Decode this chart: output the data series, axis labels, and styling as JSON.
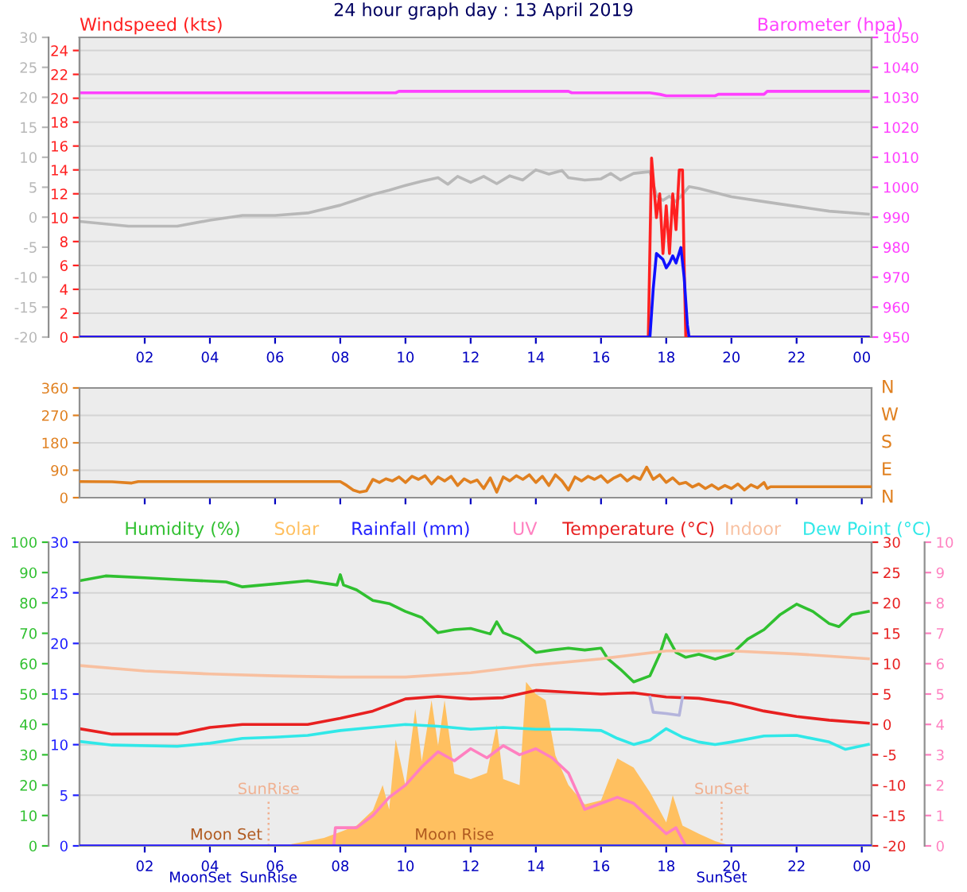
{
  "chart_data": [
    {
      "type": "line",
      "title": "24 hour graph day : 13 April 2019",
      "ylabel": "Windspeed (kts)",
      "y2label": "Barometer (hpa)",
      "xlim": [
        "2019-04-13T00:00",
        "2019-04-14T00:18"
      ],
      "xticks": [
        {
          "value": "2019-04-13T02:00",
          "label": "02"
        },
        {
          "value": "2019-04-13T04:00",
          "label": "04"
        },
        {
          "value": "2019-04-13T06:00",
          "label": "06"
        },
        {
          "value": "2019-04-13T08:00",
          "label": "08"
        },
        {
          "value": "2019-04-13T10:00",
          "label": "10"
        },
        {
          "value": "2019-04-13T12:00",
          "label": "12"
        },
        {
          "value": "2019-04-13T14:00",
          "label": "14"
        },
        {
          "value": "2019-04-13T16:00",
          "label": "16"
        },
        {
          "value": "2019-04-13T18:00",
          "label": "18"
        },
        {
          "value": "2019-04-13T20:00",
          "label": "20"
        },
        {
          "value": "2019-04-13T22:00",
          "label": "22"
        },
        {
          "value": "2019-04-14T00:00",
          "label": "00"
        }
      ],
      "ylim": [
        0,
        25.1
      ],
      "yticks": [
        0,
        2,
        4,
        6,
        8,
        10,
        12,
        14,
        16,
        18,
        20,
        22,
        24
      ],
      "y2lim": [
        950,
        1050
      ],
      "y2ticks": [
        950,
        960,
        970,
        980,
        990,
        1000,
        1010,
        1020,
        1030,
        1040,
        1050
      ],
      "y3lim": [
        -20,
        30
      ],
      "y3ticks": [
        -20,
        -15,
        -10,
        -5,
        0,
        5,
        10,
        15,
        20,
        25,
        30
      ],
      "grid": "y",
      "series": [
        {
          "color": "#b8b8b8",
          "axis": "y3",
          "x": [
            "2019-04-13T00:00",
            "2019-04-13T01:30",
            "2019-04-13T03:00",
            "2019-04-13T04:00",
            "2019-04-13T05:00",
            "2019-04-13T06:00",
            "2019-04-13T07:00",
            "2019-04-13T08:00",
            "2019-04-13T09:00",
            "2019-04-13T09:30",
            "2019-04-13T10:00",
            "2019-04-13T10:30",
            "2019-04-13T11:00",
            "2019-04-13T11:18",
            "2019-04-13T11:36",
            "2019-04-13T12:00",
            "2019-04-13T12:24",
            "2019-04-13T12:48",
            "2019-04-13T13:12",
            "2019-04-13T13:36",
            "2019-04-13T14:00",
            "2019-04-13T14:24",
            "2019-04-13T14:48",
            "2019-04-13T15:00",
            "2019-04-13T15:30",
            "2019-04-13T16:00",
            "2019-04-13T16:18",
            "2019-04-13T16:36",
            "2019-04-13T17:00",
            "2019-04-13T17:30",
            "2019-04-13T17:42",
            "2019-04-13T17:54",
            "2019-04-13T18:06",
            "2019-04-13T18:18",
            "2019-04-13T18:30",
            "2019-04-13T18:42",
            "2019-04-13T19:00",
            "2019-04-13T20:00",
            "2019-04-13T21:00",
            "2019-04-13T22:00",
            "2019-04-13T23:00",
            "2019-04-14T00:12"
          ],
          "values": [
            -0.7,
            -1.5,
            -1.5,
            -0.5,
            0.3,
            0.3,
            0.7,
            2.0,
            3.8,
            4.5,
            5.3,
            6.0,
            6.6,
            5.5,
            6.8,
            5.8,
            6.8,
            5.6,
            6.9,
            6.2,
            7.9,
            7.2,
            7.8,
            6.6,
            6.2,
            6.4,
            7.3,
            6.2,
            7.3,
            7.6,
            3.6,
            2.8,
            3.5,
            2.6,
            3.8,
            5.1,
            4.8,
            3.4,
            2.6,
            1.8,
            1.0,
            0.5
          ]
        },
        {
          "color": "#ff40ff",
          "axis": "y2",
          "x": [
            "2019-04-13T00:00",
            "2019-04-13T09:42",
            "2019-04-13T09:48",
            "2019-04-13T15:00",
            "2019-04-13T15:06",
            "2019-04-13T17:30",
            "2019-04-13T17:48",
            "2019-04-13T18:00",
            "2019-04-13T19:30",
            "2019-04-13T19:36",
            "2019-04-13T21:00",
            "2019-04-13T21:06",
            "2019-04-14T00:12"
          ],
          "values": [
            1031.5,
            1031.5,
            1032,
            1032,
            1031.5,
            1031.5,
            1031,
            1030.5,
            1030.5,
            1031,
            1031,
            1032,
            1032
          ]
        },
        {
          "color": "#ff2020",
          "x": [
            "2019-04-13T00:00",
            "2019-04-13T17:27",
            "2019-04-13T17:33",
            "2019-04-13T17:42",
            "2019-04-13T17:48",
            "2019-04-13T17:54",
            "2019-04-13T18:00",
            "2019-04-13T18:06",
            "2019-04-13T18:12",
            "2019-04-13T18:18",
            "2019-04-13T18:24",
            "2019-04-13T18:30",
            "2019-04-13T18:33",
            "2019-04-13T18:36",
            "2019-04-14T00:12"
          ],
          "values": [
            0,
            0,
            15,
            10,
            12,
            7,
            11,
            7,
            12,
            9,
            14,
            14,
            6,
            0,
            0
          ]
        },
        {
          "color": "#1010ff",
          "x": [
            "2019-04-13T00:00",
            "2019-04-13T17:30",
            "2019-04-13T17:36",
            "2019-04-13T17:42",
            "2019-04-13T17:54",
            "2019-04-13T18:00",
            "2019-04-13T18:06",
            "2019-04-13T18:12",
            "2019-04-13T18:18",
            "2019-04-13T18:27",
            "2019-04-13T18:33",
            "2019-04-13T18:39",
            "2019-04-13T18:42",
            "2019-04-14T00:12"
          ],
          "values": [
            0,
            0,
            4,
            7,
            6.5,
            5.8,
            6.2,
            6.8,
            6.2,
            7.5,
            5,
            1,
            0,
            0
          ]
        }
      ]
    },
    {
      "type": "line",
      "tick_labels": "y",
      "xlim": [
        "2019-04-13T00:00",
        "2019-04-14T00:18"
      ],
      "xticks": [
        {
          "value": "2019-04-13T02:00",
          "label": null
        },
        {
          "value": "2019-04-13T04:00",
          "label": null
        },
        {
          "value": "2019-04-13T06:00",
          "label": null
        },
        {
          "value": "2019-04-13T08:00",
          "label": null
        },
        {
          "value": "2019-04-13T10:00",
          "label": null
        },
        {
          "value": "2019-04-13T12:00",
          "label": null
        },
        {
          "value": "2019-04-13T14:00",
          "label": null
        },
        {
          "value": "2019-04-13T16:00",
          "label": null
        },
        {
          "value": "2019-04-13T18:00",
          "label": null
        },
        {
          "value": "2019-04-13T20:00",
          "label": null
        },
        {
          "value": "2019-04-13T22:00",
          "label": null
        },
        {
          "value": "2019-04-14T00:00",
          "label": null
        }
      ],
      "ylim": [
        0,
        360
      ],
      "yticks": [
        0,
        90,
        180,
        270,
        360
      ],
      "annotations": [
        "N",
        "E",
        "S",
        "W",
        "N"
      ],
      "grid": "y",
      "series": [
        {
          "color": "#e08020",
          "x": [
            "2019-04-13T00:00",
            "2019-04-13T01:00",
            "2019-04-13T01:36",
            "2019-04-13T01:48",
            "2019-04-13T04:00",
            "2019-04-13T06:00",
            "2019-04-13T08:00",
            "2019-04-13T08:12",
            "2019-04-13T08:24",
            "2019-04-13T08:36",
            "2019-04-13T08:48",
            "2019-04-13T09:00",
            "2019-04-13T09:12",
            "2019-04-13T09:24",
            "2019-04-13T09:36",
            "2019-04-13T09:48",
            "2019-04-13T10:00",
            "2019-04-13T10:12",
            "2019-04-13T10:24",
            "2019-04-13T10:36",
            "2019-04-13T10:48",
            "2019-04-13T11:00",
            "2019-04-13T11:12",
            "2019-04-13T11:24",
            "2019-04-13T11:36",
            "2019-04-13T11:48",
            "2019-04-13T12:00",
            "2019-04-13T12:12",
            "2019-04-13T12:24",
            "2019-04-13T12:36",
            "2019-04-13T12:48",
            "2019-04-13T13:00",
            "2019-04-13T13:12",
            "2019-04-13T13:24",
            "2019-04-13T13:36",
            "2019-04-13T13:48",
            "2019-04-13T14:00",
            "2019-04-13T14:12",
            "2019-04-13T14:24",
            "2019-04-13T14:36",
            "2019-04-13T14:48",
            "2019-04-13T15:00",
            "2019-04-13T15:12",
            "2019-04-13T15:24",
            "2019-04-13T15:36",
            "2019-04-13T15:48",
            "2019-04-13T16:00",
            "2019-04-13T16:12",
            "2019-04-13T16:24",
            "2019-04-13T16:36",
            "2019-04-13T16:48",
            "2019-04-13T17:00",
            "2019-04-13T17:12",
            "2019-04-13T17:24",
            "2019-04-13T17:36",
            "2019-04-13T17:48",
            "2019-04-13T18:00",
            "2019-04-13T18:12",
            "2019-04-13T18:24",
            "2019-04-13T18:36",
            "2019-04-13T18:48",
            "2019-04-13T19:00",
            "2019-04-13T19:12",
            "2019-04-13T19:24",
            "2019-04-13T19:36",
            "2019-04-13T19:48",
            "2019-04-13T20:00",
            "2019-04-13T20:12",
            "2019-04-13T20:24",
            "2019-04-13T20:36",
            "2019-04-13T20:48",
            "2019-04-13T21:00",
            "2019-04-13T21:06",
            "2019-04-13T21:12",
            "2019-04-14T00:18"
          ],
          "values": [
            53,
            52,
            48,
            53,
            53,
            53,
            53,
            40,
            25,
            18,
            22,
            60,
            50,
            62,
            55,
            68,
            50,
            70,
            60,
            72,
            45,
            68,
            55,
            70,
            40,
            62,
            50,
            58,
            30,
            65,
            18,
            68,
            55,
            72,
            60,
            75,
            50,
            70,
            40,
            75,
            55,
            25,
            68,
            55,
            70,
            60,
            72,
            50,
            65,
            75,
            55,
            70,
            60,
            100,
            60,
            75,
            50,
            65,
            45,
            50,
            35,
            45,
            30,
            42,
            28,
            40,
            30,
            45,
            25,
            42,
            32,
            50,
            30,
            36,
            36
          ]
        }
      ]
    },
    {
      "type": "line",
      "xlim": [
        "2019-04-13T00:00",
        "2019-04-14T00:18"
      ],
      "xticks": [
        {
          "value": "2019-04-13T02:00",
          "label": "02"
        },
        {
          "value": "2019-04-13T04:00",
          "label": "04"
        },
        {
          "value": "2019-04-13T06:00",
          "label": "06"
        },
        {
          "value": "2019-04-13T08:00",
          "label": "08"
        },
        {
          "value": "2019-04-13T10:00",
          "label": "10"
        },
        {
          "value": "2019-04-13T12:00",
          "label": "12"
        },
        {
          "value": "2019-04-13T14:00",
          "label": "14"
        },
        {
          "value": "2019-04-13T16:00",
          "label": "16"
        },
        {
          "value": "2019-04-13T18:00",
          "label": "18"
        },
        {
          "value": "2019-04-13T20:00",
          "label": "20"
        },
        {
          "value": "2019-04-13T22:00",
          "label": "22"
        },
        {
          "value": "2019-04-14T00:00",
          "label": "00"
        }
      ],
      "ylim": [
        0,
        30
      ],
      "yticks": [
        0,
        5,
        10,
        15,
        20,
        25,
        30
      ],
      "y2lim": [
        -20,
        30
      ],
      "y2ticks": [
        -20,
        -15,
        -10,
        -5,
        0,
        5,
        10,
        15,
        20,
        25,
        30
      ],
      "y3lim": [
        0,
        100
      ],
      "y3ticks": [
        0,
        10,
        20,
        30,
        40,
        50,
        60,
        70,
        80,
        90,
        100
      ],
      "grid": "y",
      "ref_lines": [
        {
          "axis": "x",
          "value": "2019-04-13T05:48",
          "label": "SunRise",
          "color": "#f0b090",
          "line_style": "dotted"
        },
        {
          "axis": "x",
          "value": "2019-04-13T19:42",
          "label": "SunSet",
          "color": "#f0b090",
          "line_style": "dotted"
        }
      ],
      "annotations": [
        {
          "text": "Moon Set",
          "x": "2019-04-13T04:30",
          "y": 0.3
        },
        {
          "text": "Moon Rise",
          "x": "2019-04-13T11:30",
          "y": 0.3
        },
        {
          "text": "MoonSet",
          "x": "2019-04-13T03:42",
          "y": 0
        },
        {
          "text": "SunRise",
          "x": "2019-04-13T05:48",
          "y": 0
        },
        {
          "text": "SunSet",
          "x": "2019-04-13T19:42",
          "y": 0
        }
      ],
      "series": [
        {
          "name": "Humidity (%)",
          "color": "#30c030",
          "axis": "y3",
          "x": [
            "2019-04-13T00:00",
            "2019-04-13T00:48",
            "2019-04-13T02:00",
            "2019-04-13T03:00",
            "2019-04-13T04:30",
            "2019-04-13T05:00",
            "2019-04-13T06:00",
            "2019-04-13T07:00",
            "2019-04-13T07:54",
            "2019-04-13T08:00",
            "2019-04-13T08:06",
            "2019-04-13T08:30",
            "2019-04-13T09:00",
            "2019-04-13T09:30",
            "2019-04-13T10:00",
            "2019-04-13T10:30",
            "2019-04-13T11:00",
            "2019-04-13T11:30",
            "2019-04-13T12:00",
            "2019-04-13T12:36",
            "2019-04-13T12:48",
            "2019-04-13T13:00",
            "2019-04-13T13:30",
            "2019-04-13T14:00",
            "2019-04-13T14:30",
            "2019-04-13T15:00",
            "2019-04-13T15:30",
            "2019-04-13T16:00",
            "2019-04-13T16:12",
            "2019-04-13T16:36",
            "2019-04-13T17:00",
            "2019-04-13T17:30",
            "2019-04-13T17:48",
            "2019-04-13T18:00",
            "2019-04-13T18:18",
            "2019-04-13T18:36",
            "2019-04-13T19:00",
            "2019-04-13T19:30",
            "2019-04-13T20:00",
            "2019-04-13T20:30",
            "2019-04-13T21:00",
            "2019-04-13T21:30",
            "2019-04-13T22:00",
            "2019-04-13T22:30",
            "2019-04-13T23:00",
            "2019-04-13T23:18",
            "2019-04-13T23:42",
            "2019-04-14T00:12"
          ],
          "values": [
            87.3,
            88.9,
            88.3,
            87.7,
            86.9,
            85.3,
            86.3,
            87.3,
            85.9,
            89.3,
            85.9,
            84.3,
            80.8,
            79.8,
            77.2,
            75.2,
            70.2,
            71.2,
            71.6,
            69.8,
            73.8,
            70.2,
            68.1,
            63.7,
            64.5,
            65.1,
            64.5,
            65.1,
            61.7,
            58.1,
            54.0,
            56.0,
            63.1,
            69.6,
            63.7,
            62.1,
            63.1,
            61.5,
            63.1,
            68.1,
            71.2,
            76.2,
            79.6,
            77.2,
            73.2,
            72.2,
            76.2,
            77.2
          ]
        },
        {
          "name": "Solar",
          "type": "area",
          "color": "#ffc060",
          "axis": "y3",
          "x": [
            "2019-04-13T06:30",
            "2019-04-13T07:00",
            "2019-04-13T07:30",
            "2019-04-13T08:00",
            "2019-04-13T08:30",
            "2019-04-13T09:00",
            "2019-04-13T09:18",
            "2019-04-13T09:30",
            "2019-04-13T09:42",
            "2019-04-13T10:00",
            "2019-04-13T10:18",
            "2019-04-13T10:30",
            "2019-04-13T10:48",
            "2019-04-13T11:00",
            "2019-04-13T11:12",
            "2019-04-13T11:30",
            "2019-04-13T12:00",
            "2019-04-13T12:30",
            "2019-04-13T12:48",
            "2019-04-13T13:00",
            "2019-04-13T13:30",
            "2019-04-13T13:42",
            "2019-04-13T14:00",
            "2019-04-13T14:18",
            "2019-04-13T14:36",
            "2019-04-13T15:00",
            "2019-04-13T15:30",
            "2019-04-13T16:00",
            "2019-04-13T16:30",
            "2019-04-13T17:00",
            "2019-04-13T17:30",
            "2019-04-13T18:00",
            "2019-04-13T18:12",
            "2019-04-13T18:30",
            "2019-04-13T19:00",
            "2019-04-13T19:30",
            "2019-04-13T20:00"
          ],
          "values": [
            0.6,
            1.6,
            2.6,
            4.6,
            6.7,
            11.7,
            20,
            12,
            35,
            19.8,
            45,
            27.8,
            48,
            33,
            48,
            23.8,
            22,
            24,
            39.9,
            22,
            20,
            54,
            50,
            48,
            29.8,
            20,
            13.7,
            15,
            28.8,
            25.8,
            17.7,
            7.7,
            16.7,
            6.7,
            4.0,
            1.6,
            0
          ]
        },
        {
          "name": "Rainfall (mm)",
          "color": "#2020ff",
          "x": [
            "2019-04-13T00:00",
            "2019-04-14T00:18"
          ],
          "values": [
            0,
            0
          ]
        },
        {
          "name": "Temperature (°C)",
          "color": "#e82020",
          "axis": "y2",
          "x": [
            "2019-04-13T00:00",
            "2019-04-13T01:00",
            "2019-04-13T03:00",
            "2019-04-13T04:00",
            "2019-04-13T05:00",
            "2019-04-13T06:00",
            "2019-04-13T07:00",
            "2019-04-13T08:00",
            "2019-04-13T09:00",
            "2019-04-13T10:00",
            "2019-04-13T11:00",
            "2019-04-13T12:00",
            "2019-04-13T13:00",
            "2019-04-13T14:00",
            "2019-04-13T15:00",
            "2019-04-13T16:00",
            "2019-04-13T17:00",
            "2019-04-13T18:00",
            "2019-04-13T19:00",
            "2019-04-13T20:00",
            "2019-04-13T21:00",
            "2019-04-13T22:00",
            "2019-04-13T23:00",
            "2019-04-14T00:12"
          ],
          "values": [
            -0.7,
            -1.6,
            -1.6,
            -0.5,
            0,
            0,
            0,
            1.0,
            2.2,
            4.2,
            4.6,
            4.2,
            4.4,
            5.6,
            5.3,
            5.0,
            5.2,
            4.5,
            4.3,
            3.5,
            2.2,
            1.3,
            0.7,
            0.2
          ]
        },
        {
          "name": "Indoor",
          "color": "#f8c0a0",
          "axis": "y2",
          "x": [
            "2019-04-13T00:00",
            "2019-04-13T02:00",
            "2019-04-13T04:00",
            "2019-04-13T06:00",
            "2019-04-13T08:00",
            "2019-04-13T10:00",
            "2019-04-13T12:00",
            "2019-04-13T14:00",
            "2019-04-13T16:00",
            "2019-04-13T18:00",
            "2019-04-13T20:00",
            "2019-04-13T22:00",
            "2019-04-14T00:12"
          ],
          "values": [
            9.7,
            8.8,
            8.3,
            8.0,
            7.8,
            7.8,
            8.5,
            9.8,
            10.8,
            12.1,
            12.1,
            11.6,
            10.8
          ]
        },
        {
          "name": "Dew Point (°C)",
          "color": "#30e8e8",
          "axis": "y2",
          "x": [
            "2019-04-13T00:00",
            "2019-04-13T01:00",
            "2019-04-13T03:00",
            "2019-04-13T04:00",
            "2019-04-13T05:00",
            "2019-04-13T06:00",
            "2019-04-13T07:00",
            "2019-04-13T08:00",
            "2019-04-13T09:00",
            "2019-04-13T10:00",
            "2019-04-13T11:00",
            "2019-04-13T12:00",
            "2019-04-13T13:00",
            "2019-04-13T14:00",
            "2019-04-13T15:00",
            "2019-04-13T16:00",
            "2019-04-13T16:30",
            "2019-04-13T17:00",
            "2019-04-13T17:30",
            "2019-04-13T18:00",
            "2019-04-13T18:30",
            "2019-04-13T19:00",
            "2019-04-13T19:30",
            "2019-04-13T20:00",
            "2019-04-13T21:00",
            "2019-04-13T22:00",
            "2019-04-13T23:00",
            "2019-04-13T23:30",
            "2019-04-14T00:12"
          ],
          "values": [
            -2.8,
            -3.4,
            -3.6,
            -3.1,
            -2.3,
            -2.1,
            -1.8,
            -1.0,
            -0.5,
            0,
            -0.3,
            -0.8,
            -0.5,
            -0.8,
            -0.8,
            -1.0,
            -2.3,
            -3.3,
            -2.6,
            -0.7,
            -2.1,
            -2.9,
            -3.3,
            -2.9,
            -1.9,
            -1.8,
            -2.9,
            -4.1,
            -3.3
          ]
        },
        {
          "color": "#b4b4dc",
          "axis": "y2",
          "x": [
            "2019-04-13T17:30",
            "2019-04-13T17:36",
            "2019-04-13T18:00",
            "2019-04-13T18:24",
            "2019-04-13T18:30"
          ],
          "values": [
            4.5,
            2.0,
            1.8,
            1.5,
            4.5
          ]
        }
      ]
    },
    {
      "type": "line",
      "tick_labels": "y",
      "xlim": [
        "2019-04-13T00:00",
        "2019-04-14T00:18"
      ],
      "ylim": [
        0,
        10
      ],
      "yticks": [
        0,
        1,
        2,
        3,
        4,
        5,
        6,
        7,
        8,
        9,
        10
      ],
      "series": [
        {
          "name": "UV",
          "color": "#ff80c0",
          "x": [
            "2019-04-13T00:00",
            "2019-04-13T07:48",
            "2019-04-13T07:51",
            "2019-04-13T08:30",
            "2019-04-13T09:00",
            "2019-04-13T09:30",
            "2019-04-13T10:00",
            "2019-04-13T10:30",
            "2019-04-13T11:00",
            "2019-04-13T11:30",
            "2019-04-13T12:00",
            "2019-04-13T12:30",
            "2019-04-13T13:00",
            "2019-04-13T13:30",
            "2019-04-13T14:00",
            "2019-04-13T14:30",
            "2019-04-13T15:00",
            "2019-04-13T15:30",
            "2019-04-13T16:00",
            "2019-04-13T16:30",
            "2019-04-13T17:00",
            "2019-04-13T17:30",
            "2019-04-13T18:00",
            "2019-04-13T18:18",
            "2019-04-13T18:36",
            "2019-04-14T00:12"
          ],
          "values": [
            0,
            0,
            0.6,
            0.6,
            1.0,
            1.6,
            2.0,
            2.6,
            3.1,
            2.8,
            3.2,
            2.9,
            3.3,
            3.0,
            3.2,
            2.9,
            2.4,
            1.2,
            1.4,
            1.6,
            1.4,
            0.9,
            0.4,
            0.6,
            0,
            0
          ]
        }
      ]
    }
  ]
}
